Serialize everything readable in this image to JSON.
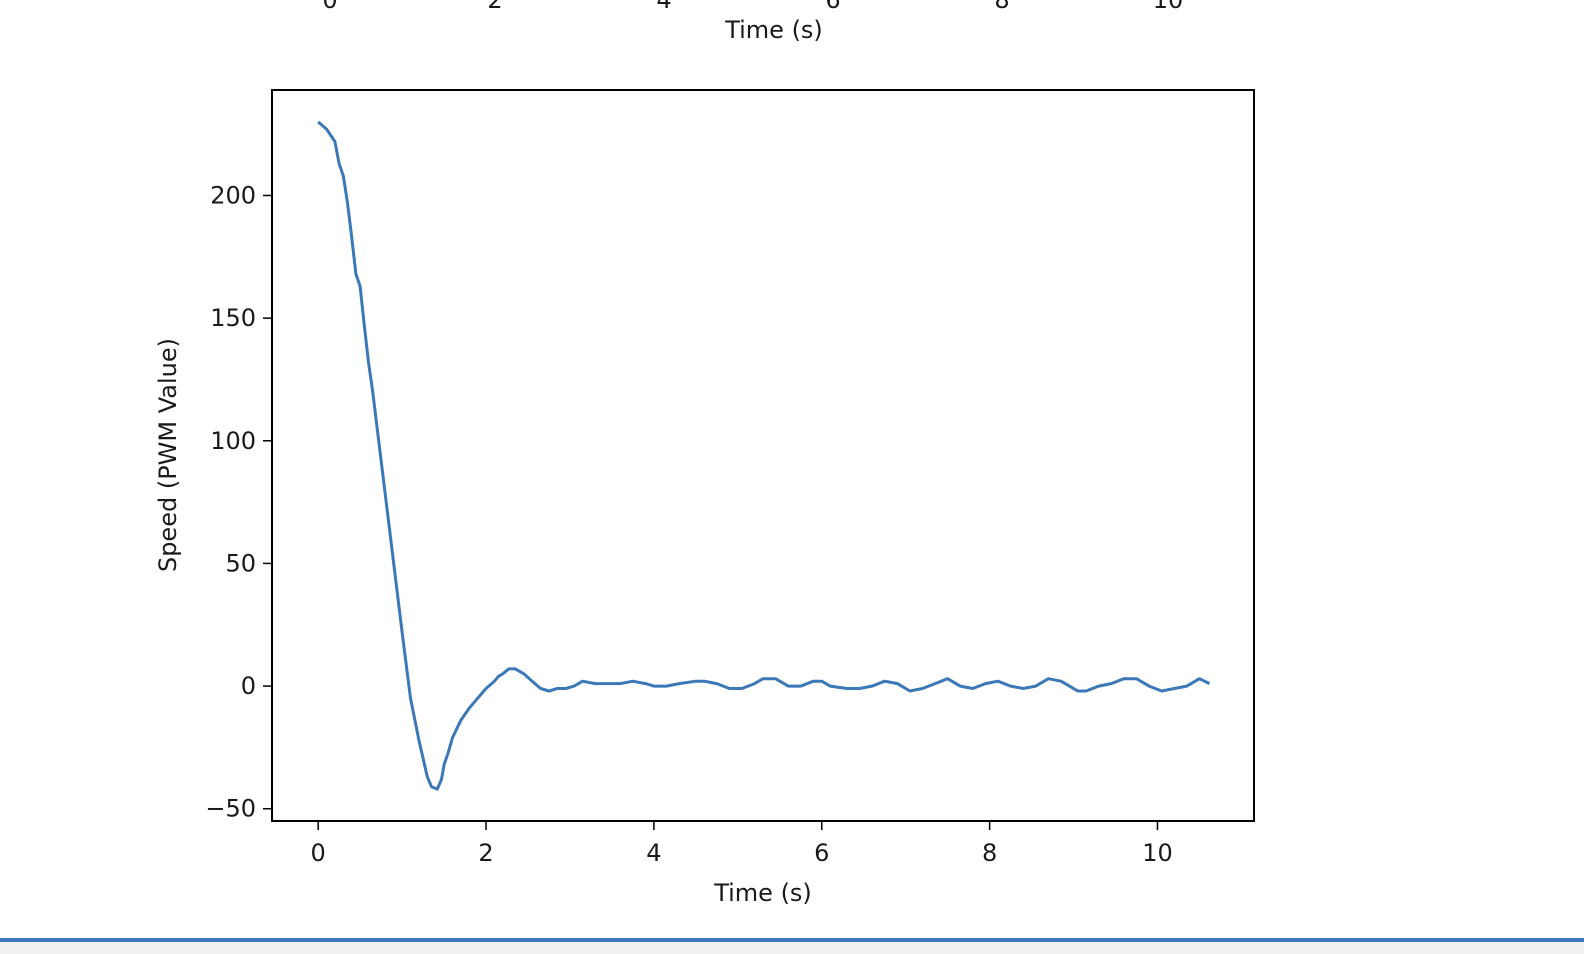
{
  "previous_plot": {
    "xlabel": "Time (s)",
    "tick_labels": [
      "0",
      "2",
      "4",
      "6",
      "8",
      "10"
    ]
  },
  "chart_data": {
    "type": "line",
    "title": "",
    "xlabel": "Time (s)",
    "ylabel": "Speed (PWM Value)",
    "xlim": [
      -0.55,
      11.15
    ],
    "ylim": [
      -55,
      243
    ],
    "xticks": [
      0,
      2,
      4,
      6,
      8,
      10
    ],
    "yticks": [
      -50,
      0,
      50,
      100,
      150,
      200
    ],
    "ytick_labels": [
      "−50",
      "0",
      "50",
      "100",
      "150",
      "200"
    ],
    "grid": false,
    "line_color": "#3b78b8",
    "series": [
      {
        "x": [
          0.0,
          0.1,
          0.2,
          0.25,
          0.3,
          0.35,
          0.4,
          0.45,
          0.5,
          0.55,
          0.6,
          0.65,
          0.7,
          0.75,
          0.8,
          0.9,
          1.0,
          1.1,
          1.2,
          1.3,
          1.35,
          1.42,
          1.47,
          1.5,
          1.55,
          1.6,
          1.7,
          1.8,
          1.9,
          2.0,
          2.1,
          2.15,
          2.2,
          2.27,
          2.35,
          2.45,
          2.55,
          2.65,
          2.75,
          2.85,
          2.95,
          3.05,
          3.15,
          3.3,
          3.45,
          3.6,
          3.75,
          3.9,
          4.0,
          4.15,
          4.3,
          4.5,
          4.6,
          4.75,
          4.9,
          5.05,
          5.2,
          5.3,
          5.45,
          5.6,
          5.75,
          5.9,
          6.0,
          6.1,
          6.3,
          6.45,
          6.6,
          6.75,
          6.9,
          7.05,
          7.2,
          7.35,
          7.5,
          7.65,
          7.8,
          7.95,
          8.1,
          8.25,
          8.4,
          8.55,
          8.7,
          8.85,
          8.95,
          9.05,
          9.15,
          9.3,
          9.45,
          9.6,
          9.75,
          9.9,
          10.05,
          10.2,
          10.35,
          10.5,
          10.62
        ],
        "y": [
          230,
          227,
          222,
          213,
          208,
          197,
          183,
          168,
          163,
          147,
          132,
          120,
          106,
          92,
          78,
          50,
          22,
          -5,
          -22,
          -37,
          -41,
          -42,
          -38,
          -32,
          -27,
          -21,
          -14,
          -9,
          -5,
          -1,
          2,
          4,
          5,
          7,
          7,
          5,
          2,
          -1,
          -2,
          -1,
          -1,
          0,
          2,
          1,
          1,
          1,
          2,
          1,
          0,
          0,
          1,
          2,
          2,
          1,
          -1,
          -1,
          1,
          3,
          3,
          0,
          0,
          2,
          2,
          0,
          -1,
          -1,
          0,
          2,
          1,
          -2,
          -1,
          1,
          3,
          0,
          -1,
          1,
          2,
          0,
          -1,
          0,
          3,
          2,
          0,
          -2,
          -2,
          0,
          1,
          3,
          3,
          0,
          -2,
          -1,
          0,
          3,
          1
        ]
      }
    ]
  }
}
